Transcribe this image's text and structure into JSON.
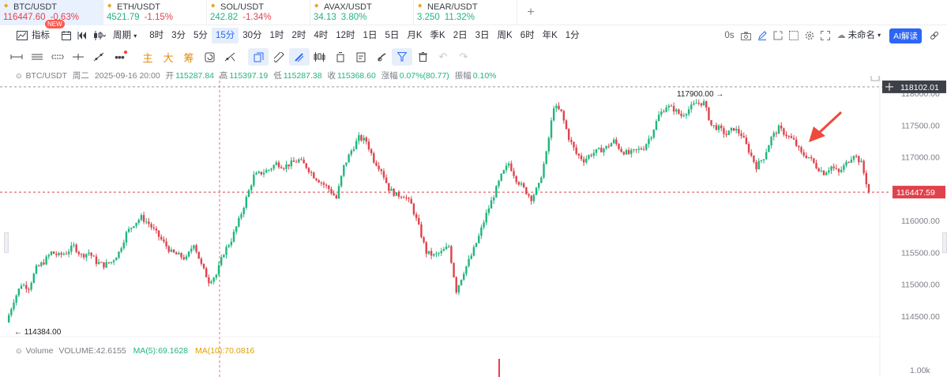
{
  "symbol_tabs": [
    {
      "symbol": "BTC/USDT",
      "price": "116447.60",
      "change": "-0.63%",
      "price_dir": "down",
      "change_dir": "down"
    },
    {
      "symbol": "ETH/USDT",
      "price": "4521.79",
      "change": "-1.15%",
      "price_dir": "up",
      "change_dir": "down"
    },
    {
      "symbol": "SOL/USDT",
      "price": "242.82",
      "change": "-1.34%",
      "price_dir": "up",
      "change_dir": "down"
    },
    {
      "symbol": "AVAX/USDT",
      "price": "34.13",
      "change": "3.80%",
      "price_dir": "up",
      "change_dir": "up"
    },
    {
      "symbol": "NEAR/USDT",
      "price": "3.250",
      "change": "11.32%",
      "price_dir": "up",
      "change_dir": "up"
    }
  ],
  "add_tab_label": "+",
  "toolbar": {
    "indicators_label": "指标",
    "new_badge": "NEW",
    "period_label": "周期",
    "intervals": [
      "8时",
      "3分",
      "5分",
      "15分",
      "30分",
      "1时",
      "2时",
      "4时",
      "12时",
      "1日",
      "5日",
      "月K",
      "季K",
      "2日",
      "3日",
      "周K",
      "6时",
      "年K",
      "1分"
    ],
    "selected_interval": "15分",
    "latency": "0s",
    "layout_name": "未命名",
    "ai_label": "AI解读"
  },
  "drawing_tools": {
    "main": "主",
    "large": "大",
    "chips": "筹"
  },
  "info_line": {
    "pair": "BTC/USDT",
    "weekday": "周二",
    "datetime": "2025-09-16 20:00",
    "open_label": "开",
    "open": "115287.84",
    "high_label": "高",
    "high": "115397.19",
    "low_label": "低",
    "low": "115287.38",
    "close_label": "收",
    "close": "115368.60",
    "change_label": "涨幅",
    "change": "0.07%(80.77)",
    "amp_label": "振幅",
    "amp": "0.10%"
  },
  "price_axis": {
    "ticks": [
      "118000.00",
      "117500.00",
      "117000.00",
      "116500.00",
      "116000.00",
      "115500.00",
      "115000.00",
      "114500.00"
    ],
    "crosshair_label": "118102.01",
    "last_price_label": "116447.59",
    "high_marker": "117900.00",
    "low_marker": "114384.00",
    "volume_tick": "1.00k"
  },
  "volume_line": {
    "label": "Volume",
    "volume": "VOLUME:42.6155",
    "ma5": "MA(5):69.1628",
    "ma10": "MA(10):70.0816"
  },
  "colors": {
    "up": "#1fb67c",
    "down": "#e0424c",
    "accent": "#2c66f5",
    "last_price": "#e0424c"
  },
  "chart_data": {
    "type": "candlestick",
    "interval": "15分",
    "ylim": [
      114300,
      118150
    ],
    "last_price": 116447.59,
    "crosshair_price": 118102.01,
    "high_marker": 117900.0,
    "low_marker": 114384.0,
    "close_path": [
      114400,
      114750,
      115000,
      114950,
      115250,
      115350,
      115500,
      115450,
      115500,
      115600,
      115450,
      115500,
      115350,
      115300,
      115350,
      115500,
      115800,
      115950,
      116050,
      115950,
      115800,
      115650,
      115500,
      115450,
      115400,
      115650,
      115300,
      115050,
      115150,
      115500,
      115700,
      116000,
      116350,
      116700,
      116750,
      116800,
      116900,
      116850,
      116900,
      116950,
      116850,
      116700,
      116600,
      116500,
      116350,
      116850,
      117100,
      117300,
      117250,
      116950,
      116800,
      116500,
      116400,
      116400,
      116250,
      115900,
      115500,
      115450,
      115500,
      115600,
      114900,
      115200,
      115450,
      115750,
      116100,
      116400,
      116700,
      116900,
      116650,
      116500,
      116350,
      116550,
      117050,
      117800,
      117700,
      117300,
      117050,
      116950,
      117050,
      117100,
      117150,
      117250,
      117100,
      117050,
      117100,
      117150,
      117350,
      117650,
      117800,
      117750,
      117650,
      117750,
      117850,
      117850,
      117500,
      117450,
      117350,
      117450,
      117350,
      117100,
      116850,
      117000,
      117300,
      117450,
      117350,
      117250,
      117050,
      117000,
      116850,
      116750,
      116850,
      116750,
      116900,
      117050,
      116900,
      116450
    ],
    "arrow_annotation": true
  }
}
